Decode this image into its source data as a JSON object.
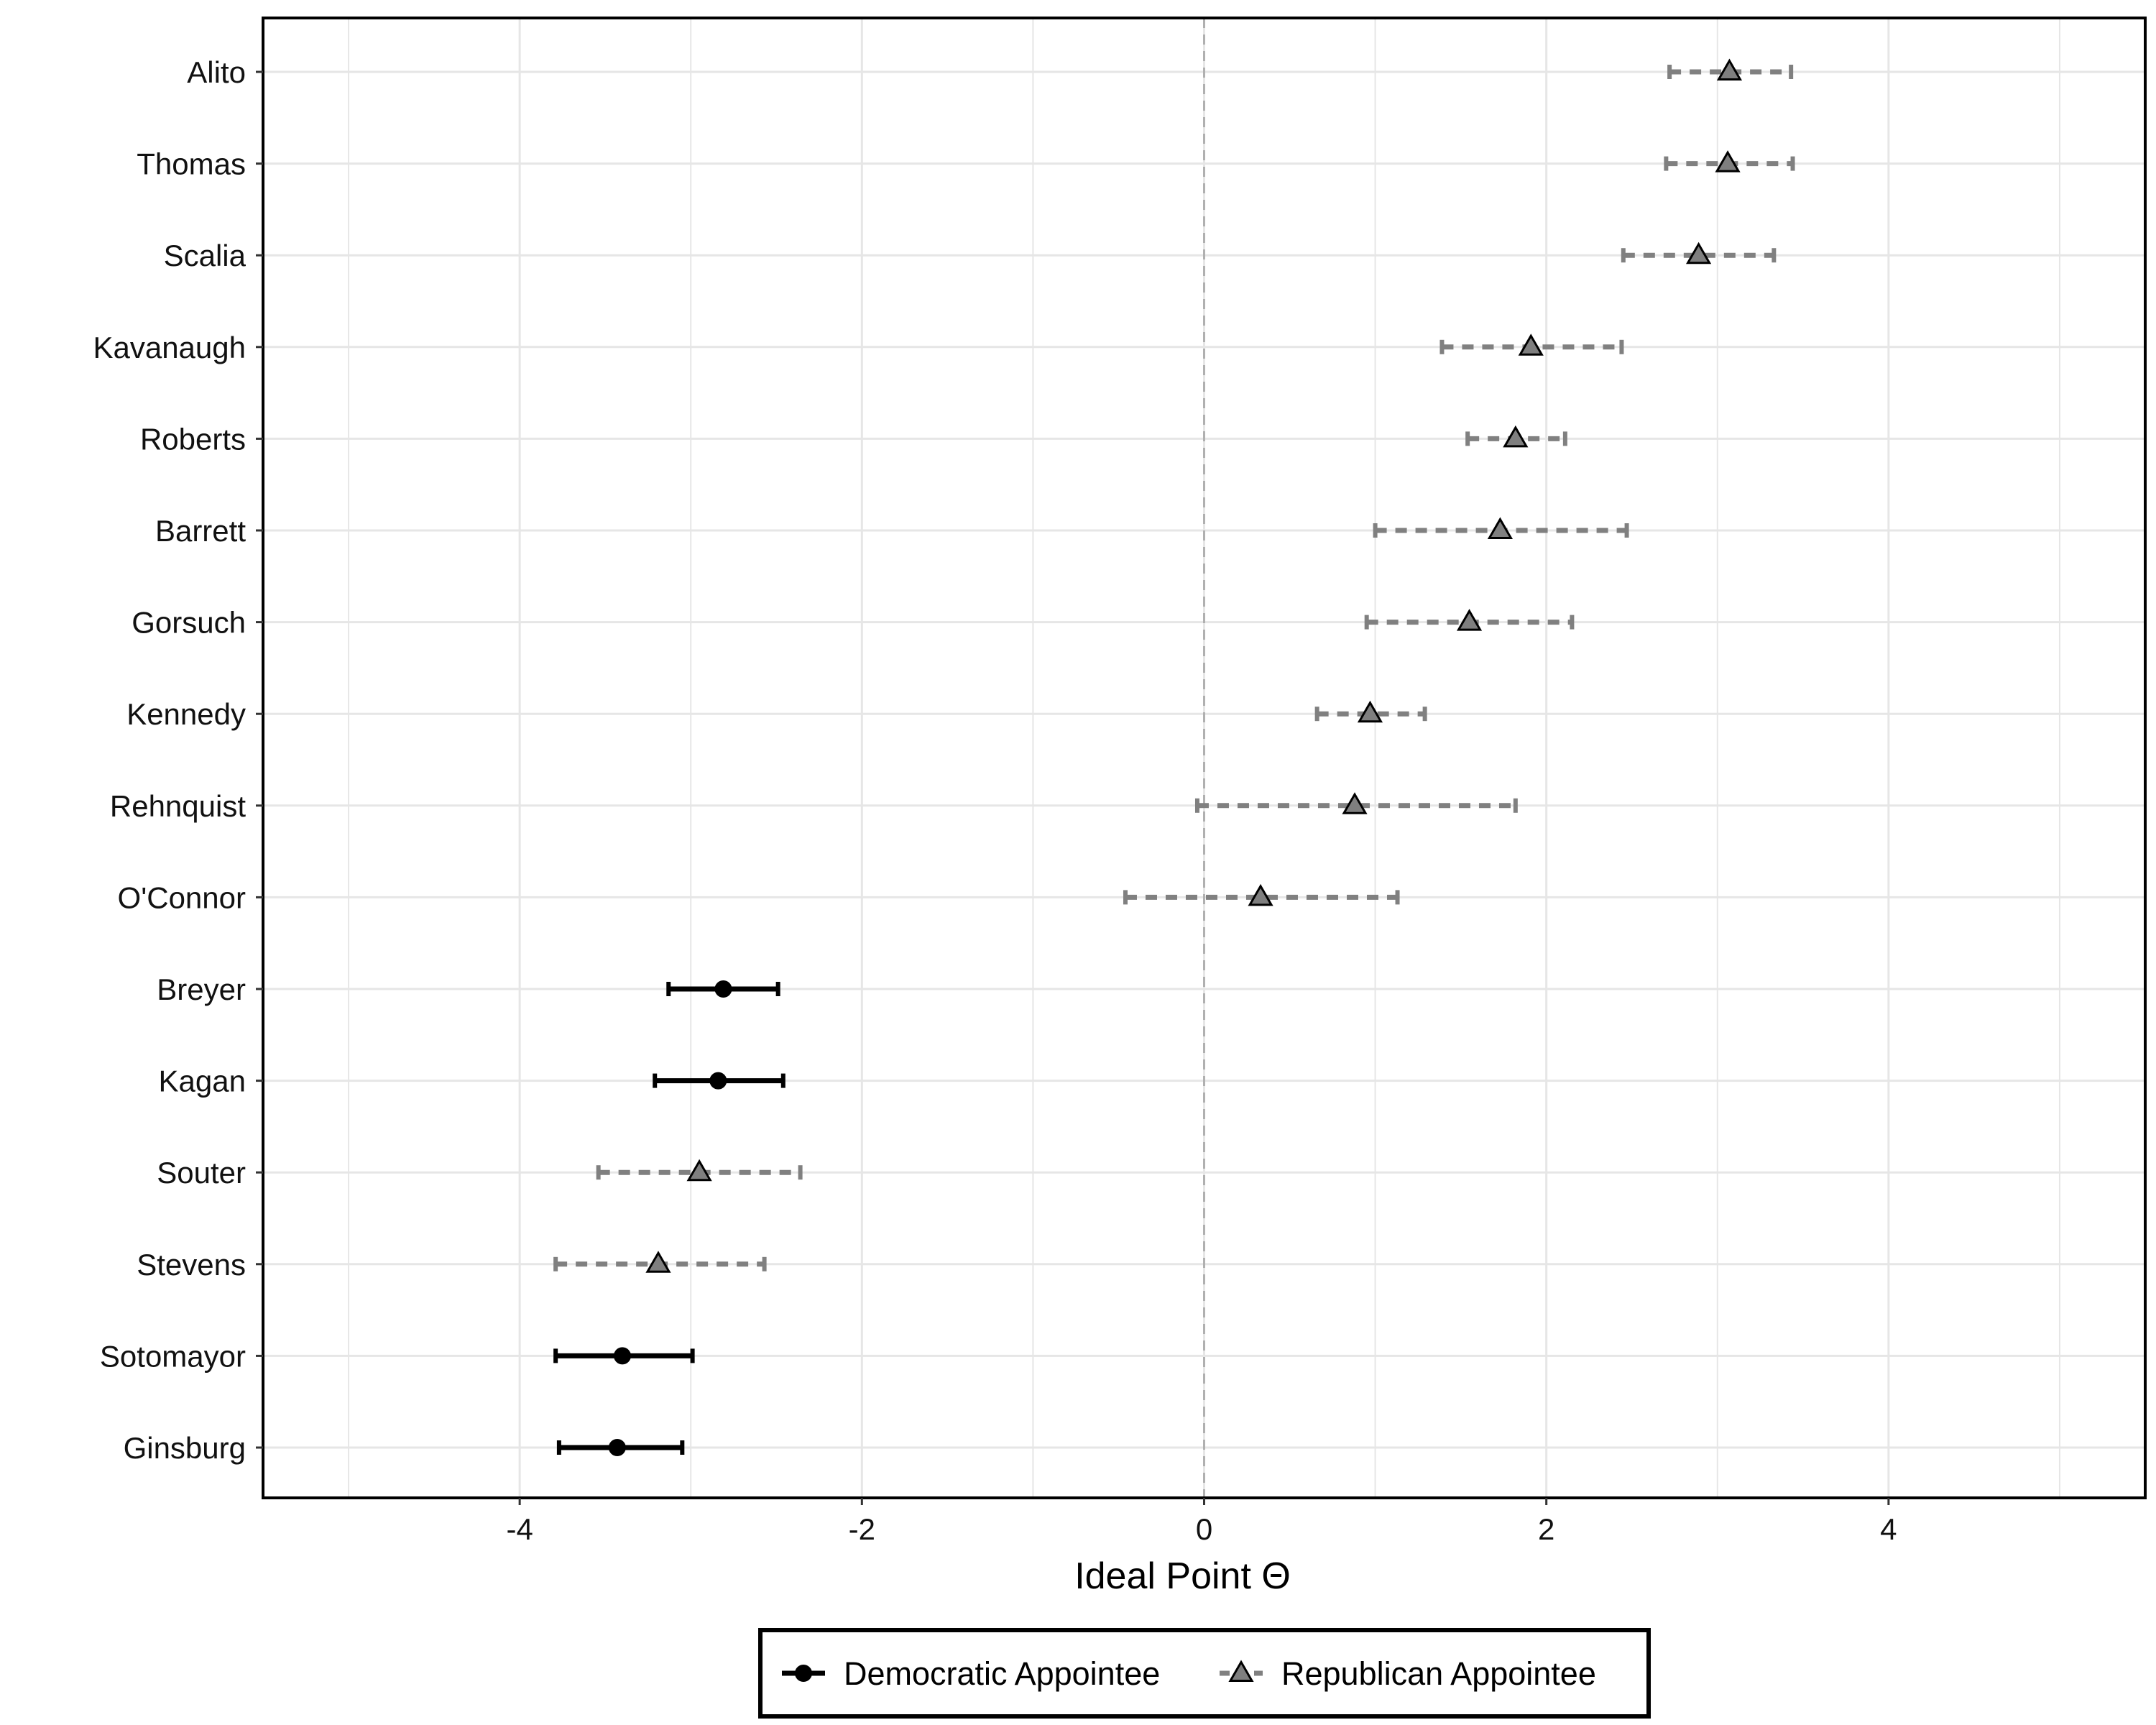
{
  "chart_data": {
    "type": "scatter",
    "xlabel": "Ideal Point Θ",
    "ylabel": "",
    "xlim": [
      -5.5,
      5.5
    ],
    "xticks": [
      -4,
      -2,
      0,
      2,
      4
    ],
    "xtick_labels": [
      "-4",
      "-2",
      "0",
      "2",
      "4"
    ],
    "grid": true,
    "reference_line_x": 0,
    "legend_position": "bottom",
    "series": [
      {
        "name": "Democratic Appointee",
        "color": "#000000",
        "line": "solid",
        "marker": "circle"
      },
      {
        "name": "Republican Appointee",
        "color": "#808080",
        "line": "dashed",
        "marker": "triangle"
      }
    ],
    "justices": [
      {
        "name": "Alito",
        "party": "Republican Appointee",
        "estimate": 3.07,
        "lower": 2.72,
        "upper": 3.43
      },
      {
        "name": "Thomas",
        "party": "Republican Appointee",
        "estimate": 3.06,
        "lower": 2.7,
        "upper": 3.44
      },
      {
        "name": "Scalia",
        "party": "Republican Appointee",
        "estimate": 2.89,
        "lower": 2.45,
        "upper": 3.33
      },
      {
        "name": "Kavanaugh",
        "party": "Republican Appointee",
        "estimate": 1.91,
        "lower": 1.39,
        "upper": 2.44
      },
      {
        "name": "Roberts",
        "party": "Republican Appointee",
        "estimate": 1.82,
        "lower": 1.54,
        "upper": 2.11
      },
      {
        "name": "Barrett",
        "party": "Republican Appointee",
        "estimate": 1.73,
        "lower": 1.0,
        "upper": 2.47
      },
      {
        "name": "Gorsuch",
        "party": "Republican Appointee",
        "estimate": 1.55,
        "lower": 0.95,
        "upper": 2.15
      },
      {
        "name": "Kennedy",
        "party": "Republican Appointee",
        "estimate": 0.97,
        "lower": 0.66,
        "upper": 1.29
      },
      {
        "name": "Rehnquist",
        "party": "Republican Appointee",
        "estimate": 0.88,
        "lower": -0.04,
        "upper": 1.82
      },
      {
        "name": "O'Connor",
        "party": "Republican Appointee",
        "estimate": 0.33,
        "lower": -0.46,
        "upper": 1.13
      },
      {
        "name": "Breyer",
        "party": "Democratic Appointee",
        "estimate": -2.81,
        "lower": -3.13,
        "upper": -2.49
      },
      {
        "name": "Kagan",
        "party": "Democratic Appointee",
        "estimate": -2.84,
        "lower": -3.21,
        "upper": -2.46
      },
      {
        "name": "Souter",
        "party": "Republican Appointee",
        "estimate": -2.95,
        "lower": -3.54,
        "upper": -2.36
      },
      {
        "name": "Stevens",
        "party": "Republican Appointee",
        "estimate": -3.19,
        "lower": -3.79,
        "upper": -2.57
      },
      {
        "name": "Sotomayor",
        "party": "Democratic Appointee",
        "estimate": -3.4,
        "lower": -3.79,
        "upper": -2.99
      },
      {
        "name": "Ginsburg",
        "party": "Democratic Appointee",
        "estimate": -3.43,
        "lower": -3.77,
        "upper": -3.05
      }
    ]
  }
}
